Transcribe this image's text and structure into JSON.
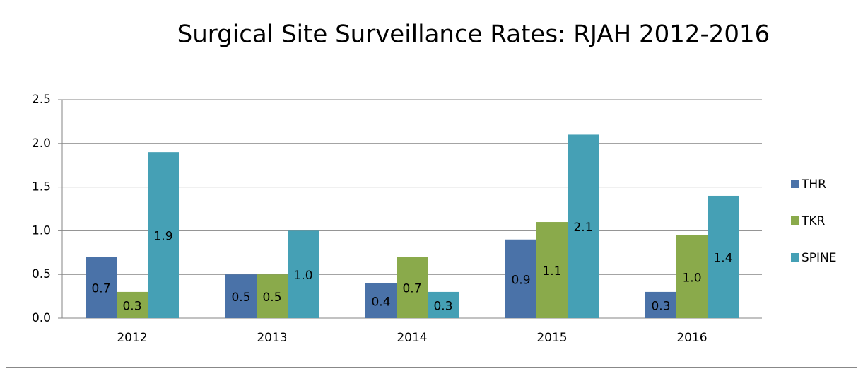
{
  "chart_data": {
    "type": "bar",
    "title": "Surgical Site Surveillance Rates: RJAH 2012-2016",
    "categories": [
      "2012",
      "2013",
      "2014",
      "2015",
      "2016"
    ],
    "series": [
      {
        "name": "THR",
        "color": "#4a72a8",
        "values": [
          0.7,
          0.5,
          0.4,
          0.9,
          0.3
        ],
        "value_labels": [
          "0.7",
          "0.5",
          "0.4",
          "0.9",
          "0.3"
        ]
      },
      {
        "name": "TKR",
        "color": "#8aaa4b",
        "values": [
          0.3,
          0.5,
          0.7,
          1.1,
          0.95
        ],
        "value_labels": [
          "0.3",
          "0.5",
          "0.7",
          "1.1",
          "1.0"
        ]
      },
      {
        "name": "SPINE",
        "color": "#45a0b5",
        "values": [
          1.9,
          1.0,
          0.3,
          2.1,
          1.4
        ],
        "value_labels": [
          "1.9",
          "1.0",
          "0.3",
          "2.1",
          "1.4"
        ]
      }
    ],
    "ylim": [
      0,
      2.5
    ],
    "yticks": [
      {
        "value": 0,
        "label": "0.0"
      },
      0.5,
      {
        "value": 1,
        "label": "1.0"
      },
      1.5,
      {
        "value": 2,
        "label": "2.0"
      },
      2.5
    ],
    "grid": true,
    "legend": "right"
  }
}
